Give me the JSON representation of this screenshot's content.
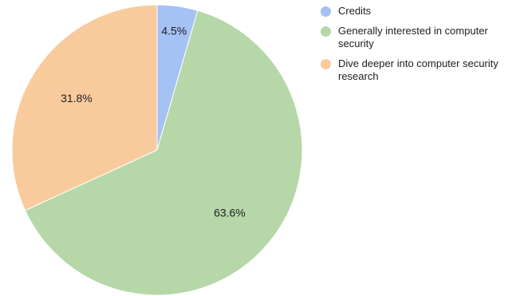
{
  "chart_data": {
    "type": "pie",
    "title": "",
    "slices": [
      {
        "label": "Credits",
        "value": 4.5,
        "display": "4.5%",
        "color": "#a4c2f4"
      },
      {
        "label": "Generally interested in computer security",
        "value": 63.6,
        "display": "63.6%",
        "color": "#b6d7a8"
      },
      {
        "label": "Dive deeper into computer security research",
        "value": 31.8,
        "display": "31.8%",
        "color": "#f9cb9c"
      }
    ],
    "start_angle_deg": 0,
    "direction": "clockwise",
    "legend_position": "right"
  }
}
